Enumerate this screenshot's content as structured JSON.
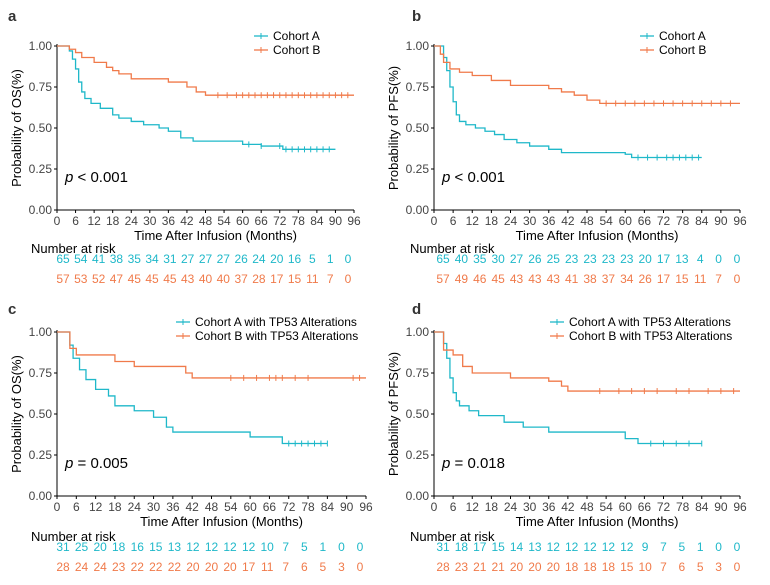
{
  "colors": {
    "cohort_a": "#1FB8C9",
    "cohort_b": "#F07A4A"
  },
  "chart_data": [
    {
      "type": "line",
      "panel_label": "a",
      "ylabel": "Probability of OS(%)",
      "xlabel": "Time After Infusion (Months)",
      "x_ticks": [
        "0",
        "6",
        "12",
        "18",
        "24",
        "30",
        "36",
        "42",
        "48",
        "54",
        "60",
        "66",
        "72",
        "78",
        "84",
        "90",
        "96"
      ],
      "y_ticks": [
        "0.00",
        "0.25",
        "0.50",
        "0.75",
        "1.00"
      ],
      "xlim": [
        0,
        96
      ],
      "ylim": [
        0,
        1
      ],
      "legend_position": "top-right",
      "p_prefix": "p",
      "p_text": " < 0.001",
      "risk_title": "Number at risk",
      "series": [
        {
          "name": "Cohort A",
          "color_key": "cohort_a",
          "steps": [
            [
              0,
              1.0
            ],
            [
              4,
              0.97
            ],
            [
              5,
              0.92
            ],
            [
              6,
              0.86
            ],
            [
              7,
              0.78
            ],
            [
              8,
              0.72
            ],
            [
              9,
              0.68
            ],
            [
              11,
              0.65
            ],
            [
              14,
              0.62
            ],
            [
              18,
              0.58
            ],
            [
              20,
              0.56
            ],
            [
              24,
              0.54
            ],
            [
              28,
              0.52
            ],
            [
              33,
              0.5
            ],
            [
              36,
              0.48
            ],
            [
              40,
              0.44
            ],
            [
              44,
              0.42
            ],
            [
              60,
              0.4
            ],
            [
              66,
              0.39
            ],
            [
              73,
              0.37
            ],
            [
              90,
              0.37
            ]
          ],
          "censors": [
            62,
            66,
            72,
            74,
            76,
            78,
            80,
            82,
            84,
            86,
            88
          ],
          "risk": [
            "65",
            "54",
            "41",
            "38",
            "35",
            "34",
            "31",
            "27",
            "27",
            "27",
            "26",
            "24",
            "20",
            "16",
            "5",
            "1",
            "0"
          ]
        },
        {
          "name": "Cohort B",
          "color_key": "cohort_b",
          "steps": [
            [
              0,
              1.0
            ],
            [
              4,
              0.98
            ],
            [
              6,
              0.96
            ],
            [
              8,
              0.93
            ],
            [
              12,
              0.9
            ],
            [
              16,
              0.87
            ],
            [
              18,
              0.85
            ],
            [
              20,
              0.83
            ],
            [
              24,
              0.8
            ],
            [
              36,
              0.78
            ],
            [
              42,
              0.75
            ],
            [
              45,
              0.72
            ],
            [
              48,
              0.7
            ],
            [
              96,
              0.7
            ]
          ],
          "censors": [
            52,
            55,
            58,
            60,
            62,
            64,
            66,
            68,
            70,
            72,
            74,
            76,
            78,
            80,
            82,
            84,
            86,
            88,
            90,
            92,
            94
          ],
          "risk": [
            "57",
            "53",
            "52",
            "47",
            "45",
            "45",
            "45",
            "43",
            "40",
            "40",
            "37",
            "28",
            "17",
            "15",
            "11",
            "7",
            "0"
          ]
        }
      ]
    },
    {
      "type": "line",
      "panel_label": "b",
      "ylabel": "Probability of PFS(%)",
      "xlabel": "Time After Infusion (Months)",
      "x_ticks": [
        "0",
        "6",
        "12",
        "18",
        "24",
        "30",
        "36",
        "42",
        "48",
        "54",
        "60",
        "66",
        "72",
        "78",
        "84",
        "90",
        "96"
      ],
      "y_ticks": [
        "0.00",
        "0.25",
        "0.50",
        "0.75",
        "1.00"
      ],
      "xlim": [
        0,
        96
      ],
      "ylim": [
        0,
        1
      ],
      "legend_position": "top-right",
      "p_prefix": "p",
      "p_text": " < 0.001",
      "risk_title": "Number at risk",
      "series": [
        {
          "name": "Cohort A",
          "color_key": "cohort_a",
          "steps": [
            [
              0,
              1.0
            ],
            [
              3,
              0.93
            ],
            [
              4,
              0.85
            ],
            [
              5,
              0.75
            ],
            [
              6,
              0.66
            ],
            [
              7,
              0.58
            ],
            [
              8,
              0.54
            ],
            [
              10,
              0.52
            ],
            [
              13,
              0.5
            ],
            [
              16,
              0.48
            ],
            [
              19,
              0.46
            ],
            [
              22,
              0.43
            ],
            [
              26,
              0.41
            ],
            [
              30,
              0.39
            ],
            [
              36,
              0.37
            ],
            [
              40,
              0.35
            ],
            [
              60,
              0.34
            ],
            [
              62,
              0.32
            ],
            [
              84,
              0.32
            ]
          ],
          "censors": [
            64,
            67,
            70,
            73,
            75,
            77,
            79,
            81,
            83
          ],
          "risk": [
            "65",
            "40",
            "35",
            "30",
            "27",
            "26",
            "25",
            "23",
            "23",
            "23",
            "23",
            "20",
            "17",
            "13",
            "4",
            "0",
            "0"
          ]
        },
        {
          "name": "Cohort B",
          "color_key": "cohort_b",
          "steps": [
            [
              0,
              1.0
            ],
            [
              2,
              0.95
            ],
            [
              3,
              0.9
            ],
            [
              5,
              0.86
            ],
            [
              8,
              0.84
            ],
            [
              12,
              0.82
            ],
            [
              18,
              0.79
            ],
            [
              24,
              0.76
            ],
            [
              36,
              0.74
            ],
            [
              40,
              0.72
            ],
            [
              44,
              0.7
            ],
            [
              48,
              0.67
            ],
            [
              52,
              0.65
            ],
            [
              96,
              0.65
            ]
          ],
          "censors": [
            54,
            57,
            60,
            63,
            66,
            69,
            72,
            75,
            78,
            81,
            84,
            87,
            90,
            93
          ],
          "risk": [
            "57",
            "49",
            "46",
            "45",
            "43",
            "43",
            "43",
            "41",
            "38",
            "37",
            "34",
            "26",
            "17",
            "15",
            "11",
            "7",
            "0"
          ]
        }
      ]
    },
    {
      "type": "line",
      "panel_label": "c",
      "ylabel": "Probability of OS(%)",
      "xlabel": "Time After Infusion (Months)",
      "x_ticks": [
        "0",
        "6",
        "12",
        "18",
        "24",
        "30",
        "36",
        "42",
        "48",
        "54",
        "60",
        "66",
        "72",
        "78",
        "84",
        "90",
        "96"
      ],
      "y_ticks": [
        "0.00",
        "0.25",
        "0.50",
        "0.75",
        "1.00"
      ],
      "xlim": [
        0,
        96
      ],
      "ylim": [
        0,
        1
      ],
      "legend_position": "top-right",
      "p_prefix": "p",
      "p_text": " = 0.005",
      "risk_title": "Number at risk",
      "series": [
        {
          "name": "Cohort A with TP53 Alterations",
          "color_key": "cohort_a",
          "steps": [
            [
              0,
              1.0
            ],
            [
              4,
              0.92
            ],
            [
              5,
              0.84
            ],
            [
              7,
              0.77
            ],
            [
              9,
              0.71
            ],
            [
              12,
              0.65
            ],
            [
              16,
              0.61
            ],
            [
              18,
              0.55
            ],
            [
              24,
              0.52
            ],
            [
              30,
              0.48
            ],
            [
              34,
              0.42
            ],
            [
              36,
              0.39
            ],
            [
              60,
              0.36
            ],
            [
              70,
              0.32
            ],
            [
              84,
              0.32
            ]
          ],
          "censors": [
            72,
            74,
            76,
            78,
            80,
            82,
            84
          ],
          "risk": [
            "31",
            "25",
            "20",
            "18",
            "16",
            "15",
            "13",
            "12",
            "12",
            "12",
            "12",
            "10",
            "7",
            "5",
            "1",
            "0",
            "0"
          ]
        },
        {
          "name": "Cohort B with TP53 Alterations",
          "color_key": "cohort_b",
          "steps": [
            [
              0,
              1.0
            ],
            [
              4,
              0.9
            ],
            [
              6,
              0.86
            ],
            [
              18,
              0.82
            ],
            [
              24,
              0.79
            ],
            [
              40,
              0.75
            ],
            [
              42,
              0.72
            ],
            [
              96,
              0.72
            ]
          ],
          "censors": [
            54,
            58,
            62,
            66,
            68,
            70,
            74,
            78,
            92,
            94
          ],
          "risk": [
            "28",
            "24",
            "24",
            "23",
            "22",
            "22",
            "22",
            "20",
            "20",
            "20",
            "17",
            "11",
            "7",
            "6",
            "5",
            "3",
            "0"
          ]
        }
      ]
    },
    {
      "type": "line",
      "panel_label": "d",
      "ylabel": "Probability of PFS(%)",
      "xlabel": "Time After Infusion (Months)",
      "x_ticks": [
        "0",
        "6",
        "12",
        "18",
        "24",
        "30",
        "36",
        "42",
        "48",
        "54",
        "60",
        "66",
        "72",
        "78",
        "84",
        "90",
        "96"
      ],
      "y_ticks": [
        "0.00",
        "0.25",
        "0.50",
        "0.75",
        "1.00"
      ],
      "xlim": [
        0,
        96
      ],
      "ylim": [
        0,
        1
      ],
      "legend_position": "top-right",
      "p_prefix": "p",
      "p_text": " = 0.018",
      "risk_title": "Number at risk",
      "series": [
        {
          "name": "Cohort A with TP53 Alterations",
          "color_key": "cohort_a",
          "steps": [
            [
              0,
              1.0
            ],
            [
              3,
              0.93
            ],
            [
              4,
              0.84
            ],
            [
              5,
              0.72
            ],
            [
              6,
              0.63
            ],
            [
              7,
              0.58
            ],
            [
              8,
              0.55
            ],
            [
              11,
              0.52
            ],
            [
              14,
              0.49
            ],
            [
              22,
              0.45
            ],
            [
              28,
              0.42
            ],
            [
              36,
              0.39
            ],
            [
              60,
              0.35
            ],
            [
              64,
              0.32
            ],
            [
              84,
              0.32
            ]
          ],
          "censors": [
            68,
            72,
            76,
            80,
            84
          ],
          "risk": [
            "31",
            "18",
            "17",
            "15",
            "14",
            "13",
            "12",
            "12",
            "12",
            "12",
            "12",
            "9",
            "7",
            "5",
            "1",
            "0",
            "0"
          ]
        },
        {
          "name": "Cohort B with TP53 Alterations",
          "color_key": "cohort_b",
          "steps": [
            [
              0,
              1.0
            ],
            [
              3,
              0.89
            ],
            [
              6,
              0.86
            ],
            [
              9,
              0.79
            ],
            [
              12,
              0.75
            ],
            [
              24,
              0.72
            ],
            [
              36,
              0.7
            ],
            [
              40,
              0.67
            ],
            [
              42,
              0.64
            ],
            [
              96,
              0.64
            ]
          ],
          "censors": [
            52,
            58,
            62,
            66,
            70,
            76,
            80,
            86,
            90,
            94
          ],
          "risk": [
            "28",
            "23",
            "21",
            "21",
            "20",
            "20",
            "20",
            "18",
            "18",
            "18",
            "15",
            "10",
            "7",
            "6",
            "5",
            "3",
            "0"
          ]
        }
      ]
    }
  ]
}
